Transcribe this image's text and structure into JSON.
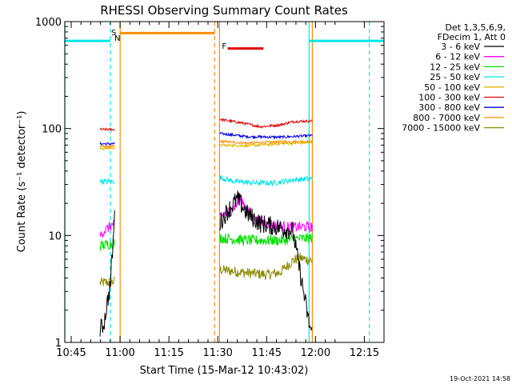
{
  "chart_data": {
    "type": "line",
    "title": "RHESSI Observing Summary Count Rates",
    "xlabel": "Start Time (15-Mar-12 10:43:02)",
    "ylabel": "Count Rate (s⁻¹ detector⁻¹)",
    "yscale": "log",
    "ylim": [
      1,
      1000
    ],
    "xlim_minutes_after_start": [
      0,
      98
    ],
    "x_ticks": [
      "10:45",
      "11:00",
      "11:15",
      "11:30",
      "11:45",
      "12:00",
      "12:15"
    ],
    "y_ticks": [
      "1",
      "10",
      "100",
      "1000"
    ],
    "legend": {
      "placement": "right",
      "header": [
        "Det 1,3,5,6,9,",
        "FDecim 1, Att 0"
      ],
      "entries": [
        {
          "label": "3 - 6 keV",
          "color": "#000000"
        },
        {
          "label": "6 - 12 keV",
          "color": "#ff00ff"
        },
        {
          "label": "12 - 25 keV",
          "color": "#00e000"
        },
        {
          "label": "25 - 50 keV",
          "color": "#00e6e6"
        },
        {
          "label": "50 - 100 keV",
          "color": "#e6b400"
        },
        {
          "label": "100 - 300 keV",
          "color": "#e00000"
        },
        {
          "label": "300 - 800 keV",
          "color": "#0000e6"
        },
        {
          "label": "800 - 7000 keV",
          "color": "#ff8c00"
        },
        {
          "label": "7000 - 15000 keV",
          "color": "#8a8a00"
        }
      ]
    },
    "annotations": {
      "saa_label": "S",
      "night_label": "N",
      "flare_label": "F"
    },
    "series": [
      {
        "name": "3 - 6 keV",
        "segments": [
          {
            "x": [
              10.8,
              12,
              14,
              15.3
            ],
            "y": [
              1.3,
              1.5,
              3.5,
              15
            ]
          },
          {
            "x": [
              47.5,
              50,
              53,
              56,
              60,
              65,
              70,
              75,
              76
            ],
            "y": [
              13,
              17,
              22,
              16,
              13,
              12,
              11,
              1.5,
              1.2
            ]
          }
        ]
      },
      {
        "name": "6 - 12 keV",
        "segments": [
          {
            "x": [
              10.8,
              12,
              15.3
            ],
            "y": [
              10,
              11,
              13
            ]
          },
          {
            "x": [
              47.5,
              51,
              54,
              58,
              62,
              68,
              76
            ],
            "y": [
              15,
              17,
              22,
              14,
              13,
              12,
              12
            ]
          }
        ]
      },
      {
        "name": "12 - 25 keV",
        "segments": [
          {
            "x": [
              10.8,
              15.3
            ],
            "y": [
              8,
              8.5
            ]
          },
          {
            "x": [
              47.5,
              56,
              66,
              76
            ],
            "y": [
              9.5,
              9,
              9,
              9.5
            ]
          }
        ]
      },
      {
        "name": "25 - 50 keV",
        "segments": [
          {
            "x": [
              10.8,
              15.3
            ],
            "y": [
              32,
              32
            ]
          },
          {
            "x": [
              47.5,
              52,
              58,
              64,
              70,
              76
            ],
            "y": [
              35,
              32,
              31,
              31,
              33,
              34
            ]
          }
        ]
      },
      {
        "name": "50 - 100 keV",
        "segments": [
          {
            "x": [
              10.8,
              15.3
            ],
            "y": [
              65,
              66
            ]
          },
          {
            "x": [
              47.5,
              56,
              66,
              76
            ],
            "y": [
              70,
              69,
              72,
              74
            ]
          }
        ]
      },
      {
        "name": "100 - 300 keV",
        "segments": [
          {
            "x": [
              10.8,
              15.3
            ],
            "y": [
              98,
              98
            ]
          },
          {
            "x": [
              47.5,
              55,
              60,
              66,
              70,
              76
            ],
            "y": [
              122,
              112,
              104,
              108,
              116,
              118
            ]
          }
        ]
      },
      {
        "name": "300 - 800 keV",
        "segments": [
          {
            "x": [
              10.8,
              15.3
            ],
            "y": [
              72,
              72
            ]
          },
          {
            "x": [
              47.5,
              56,
              66,
              76
            ],
            "y": [
              90,
              84,
              83,
              86
            ]
          }
        ]
      },
      {
        "name": "800 - 7000 keV",
        "segments": [
          {
            "x": [
              10.8,
              15.3
            ],
            "y": [
              68,
              68
            ]
          },
          {
            "x": [
              47.5,
              56,
              66,
              76
            ],
            "y": [
              76,
              73,
              75,
              76
            ]
          }
        ]
      },
      {
        "name": "7000 - 15000 keV",
        "segments": [
          {
            "x": [
              10.8,
              15.3
            ],
            "y": [
              3.6,
              3.7
            ]
          },
          {
            "x": [
              47.5,
              55,
              62,
              66,
              70,
              72,
              76
            ],
            "y": [
              4.8,
              4.5,
              4.3,
              4.5,
              5.8,
              6.2,
              5.8
            ]
          }
        ]
      }
    ],
    "status_bars": [
      {
        "name": "saa/night",
        "color": "#00e6e6",
        "segments": [
          [
            0,
            14
          ],
          [
            75,
            98
          ]
        ],
        "y": 660
      },
      {
        "name": "attenuator",
        "color": "#ff8c00",
        "segments": [
          [
            17,
            46
          ]
        ],
        "y": 780
      },
      {
        "name": "flare",
        "color": "#e00000",
        "segments": [
          [
            50,
            61
          ]
        ],
        "y": 560
      }
    ],
    "vertical_markers": [
      {
        "x": 0,
        "color": "#00e6e6",
        "style": "solid"
      },
      {
        "x": 14,
        "color": "#00e6e6",
        "style": "dashed"
      },
      {
        "x": 17,
        "color": "#ff8c00",
        "style": "solid"
      },
      {
        "x": 46,
        "color": "#ff8c00",
        "style": "dashed"
      },
      {
        "x": 47.5,
        "color": "#ff8c00",
        "style": "solid"
      },
      {
        "x": 75,
        "color": "#00e6e6",
        "style": "solid"
      },
      {
        "x": 76,
        "color": "#ff8c00",
        "style": "solid"
      },
      {
        "x": 93.5,
        "color": "#00e6e6",
        "style": "dashed"
      }
    ]
  },
  "footer": {
    "timestamp": "19-Oct-2021 14:58"
  }
}
